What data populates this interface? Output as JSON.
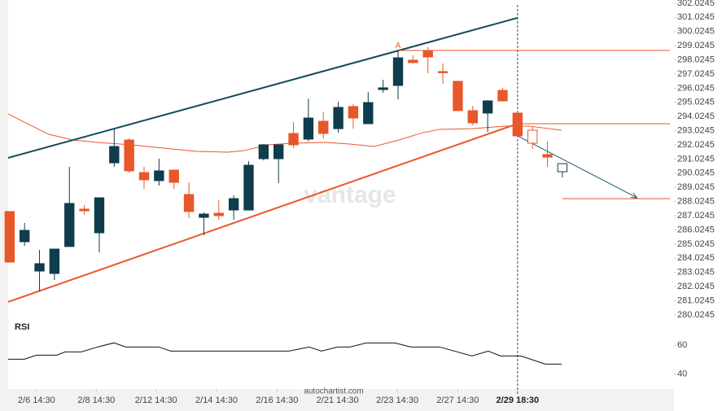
{
  "chart_data": {
    "type": "candlestick",
    "x": [
      0,
      1,
      2,
      3,
      4,
      5,
      6,
      7,
      8,
      9,
      10,
      11,
      12,
      13,
      14,
      15,
      16,
      17,
      18,
      19,
      20,
      21,
      22,
      23,
      24,
      25,
      26,
      27,
      28,
      29,
      30,
      31,
      32,
      33,
      34,
      35,
      36,
      37
    ],
    "open": [
      287.32,
      285.19,
      283.12,
      282.95,
      284.85,
      287.49,
      285.82,
      290.76,
      292.37,
      290.07,
      289.5,
      290.24,
      288.52,
      286.91,
      287.2,
      287.43,
      287.43,
      291.05,
      291.05,
      292.83,
      292.43,
      293.69,
      293.17,
      294.73,
      293.52,
      295.93,
      296.22,
      298.0,
      298.69,
      297.2,
      296.51,
      294.44,
      294.27,
      295.87,
      294.27,
      293.06,
      291.34,
      290.13
    ],
    "high": [
      287.32,
      286.51,
      284.62,
      284.67,
      290.47,
      287.77,
      288.29,
      293.17,
      292.48,
      290.47,
      291.05,
      290.3,
      289.38,
      287.26,
      288.12,
      288.46,
      290.88,
      292.08,
      292.03,
      293.63,
      295.3,
      294.32,
      295.07,
      294.9,
      295.76,
      296.62,
      298.69,
      298.34,
      298.92,
      297.77,
      296.51,
      294.78,
      295.18,
      296.05,
      294.27,
      293.35,
      292.26,
      290.7
    ],
    "low": [
      283.75,
      284.9,
      281.69,
      282.49,
      284.85,
      287.09,
      284.44,
      290.47,
      290.07,
      288.92,
      289.15,
      288.92,
      286.86,
      285.65,
      286.74,
      286.74,
      287.43,
      290.93,
      289.33,
      291.8,
      292.26,
      292.48,
      292.89,
      293.17,
      293.52,
      295.7,
      295.24,
      297.77,
      297.08,
      296.33,
      294.44,
      293.4,
      292.94,
      295.07,
      292.54,
      291.74,
      290.47,
      289.73
    ],
    "close": [
      283.75,
      285.99,
      283.64,
      284.67,
      287.89,
      287.37,
      288.29,
      291.91,
      290.19,
      289.56,
      290.19,
      289.38,
      287.32,
      287.14,
      287.03,
      288.23,
      290.59,
      292.03,
      292.03,
      292.03,
      293.92,
      292.83,
      294.67,
      293.92,
      295.01,
      296.05,
      298.17,
      297.83,
      298.23,
      297.14,
      294.44,
      293.58,
      295.13,
      295.13,
      292.66,
      292.14,
      291.16,
      290.7
    ],
    "hollow": [
      false,
      false,
      false,
      false,
      false,
      false,
      false,
      false,
      false,
      false,
      false,
      false,
      false,
      false,
      false,
      false,
      false,
      false,
      false,
      false,
      false,
      false,
      false,
      false,
      false,
      false,
      false,
      false,
      false,
      false,
      false,
      false,
      false,
      false,
      false,
      true,
      false,
      true
    ],
    "up_color": "#0f3d4c",
    "down_color": "#e8572a",
    "xlim": [
      -0.1,
      44.47
    ],
    "xticks": [
      {
        "value": 1.8,
        "label": "2/6 14:30"
      },
      {
        "value": 5.8,
        "label": "2/8 14:30"
      },
      {
        "value": 9.8,
        "label": "2/12 14:30"
      },
      {
        "value": 13.85,
        "label": "2/14 14:30"
      },
      {
        "value": 17.9,
        "label": "2/16 14:30"
      },
      {
        "value": 21.95,
        "label": "2/21 14:30"
      },
      {
        "value": 25.95,
        "label": "2/23 14:30"
      },
      {
        "value": 30,
        "label": "2/27 14:30"
      },
      {
        "value": 34,
        "label": "2/29 18:30"
      }
    ],
    "marker_x": 34,
    "ylim": [
      279.56,
      302.25
    ],
    "yticks": [
      280.0245,
      281.0245,
      282.0245,
      283.0245,
      284.0245,
      285.0245,
      286.0245,
      287.0245,
      288.0245,
      289.0245,
      290.0245,
      291.0245,
      292.0245,
      293.0245,
      294.0245,
      295.0245,
      296.0245,
      297.0245,
      298.0245,
      299.0245,
      300.0245,
      301.0245,
      302.0245
    ],
    "lines": [
      {
        "x": [
          -0.1,
          0.98,
          2.62,
          4.25,
          5.89,
          8.07,
          10.25,
          12.43,
          14.6,
          15.69,
          17.33,
          18.96,
          21.14,
          22.78,
          24.41,
          26.05,
          27.68,
          28.77,
          30.95,
          33.13,
          34.77,
          36.95
        ],
        "values": [
          294.21,
          293.63,
          292.77,
          292.37,
          292.2,
          292.03,
          291.8,
          291.57,
          291.51,
          291.62,
          292.03,
          292.14,
          292.2,
          292.08,
          291.91,
          292.37,
          292.89,
          293.12,
          293.17,
          293.35,
          293.35,
          293.06
        ],
        "color": "#e8572a",
        "width": 1
      },
      {
        "x": [
          -0.1,
          34
        ],
        "values": [
          291.11,
          300.99
        ],
        "color": "#0f4a5a",
        "width": 2
      },
      {
        "x": [
          -0.1,
          34
        ],
        "values": [
          280.94,
          293.52
        ],
        "color": "#e8572a",
        "width": 2
      },
      {
        "x": [
          26,
          44.2
        ],
        "values": [
          298.69,
          298.69
        ],
        "color": "#e8572a",
        "width": 1
      },
      {
        "x": [
          34,
          44.2
        ],
        "values": [
          293.52,
          293.52
        ],
        "color": "#e8572a",
        "width": 1
      },
      {
        "x": [
          37,
          44.2
        ],
        "values": [
          288.23,
          288.23
        ],
        "color": "#e8572a",
        "width": 1
      },
      {
        "x": [
          34,
          42
        ],
        "values": [
          292.66,
          288.29
        ],
        "color": "#1a5a6e",
        "width": 1,
        "arrow": true
      }
    ],
    "annotations": [
      {
        "text": "A",
        "x": 26,
        "value": 299.0,
        "color": "#e8572a"
      }
    ],
    "watermark": "vantage",
    "source": "autochartist.com",
    "rsi": {
      "title": "RSI",
      "x": [
        -0.1,
        0.98,
        1.8,
        3.16,
        3.71,
        4.8,
        5.89,
        6.98,
        7.79,
        9.97,
        10.79,
        18.69,
        20.05,
        20.87,
        21.96,
        22.78,
        23.87,
        25.78,
        26.87,
        28.77,
        30.95,
        32.04,
        32.86,
        34.22,
        35.86,
        36.95
      ],
      "values": [
        50.29,
        50.29,
        53.14,
        53.14,
        55.43,
        55.43,
        58.86,
        61.71,
        58.86,
        58.86,
        56,
        56,
        58.86,
        56,
        58.86,
        58.86,
        61.71,
        61.71,
        58.86,
        58.86,
        52.57,
        56,
        52.57,
        52.57,
        46.86,
        46.86
      ],
      "color": "#111111",
      "ylim": [
        30,
        75
      ],
      "yticks": [
        40,
        60
      ]
    }
  }
}
